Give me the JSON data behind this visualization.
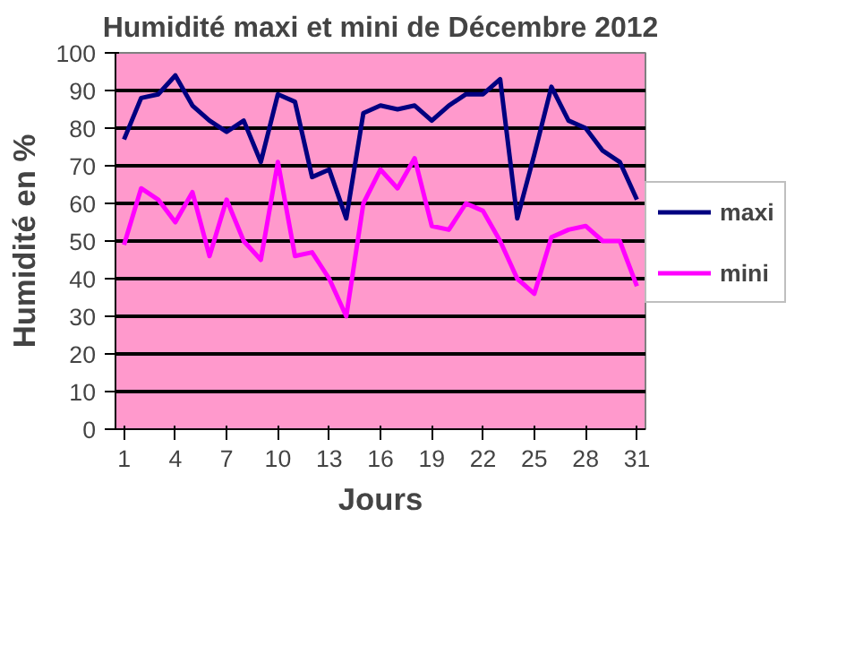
{
  "chart_data": {
    "type": "line",
    "title": "Humidité maxi et mini de Décembre 2012",
    "xlabel": "Jours",
    "ylabel": "Humidité en %",
    "x": [
      1,
      2,
      3,
      4,
      5,
      6,
      7,
      8,
      9,
      10,
      11,
      12,
      13,
      14,
      15,
      16,
      17,
      18,
      19,
      20,
      21,
      22,
      23,
      24,
      25,
      26,
      27,
      28,
      29,
      30,
      31
    ],
    "xlim": [
      0.5,
      31.5
    ],
    "xticks": [
      1,
      4,
      7,
      10,
      13,
      16,
      19,
      22,
      25,
      28,
      31
    ],
    "ylim": [
      0,
      100
    ],
    "yticks": [
      0,
      10,
      20,
      30,
      40,
      50,
      60,
      70,
      80,
      90,
      100
    ],
    "grid": "y",
    "legend": "right",
    "marker": "none",
    "line_style": "solid",
    "series": [
      {
        "name": "maxi",
        "color": "#000080",
        "values": [
          77,
          88,
          89,
          94,
          86,
          82,
          79,
          82,
          71,
          89,
          87,
          67,
          69,
          56,
          84,
          86,
          85,
          86,
          82,
          86,
          89,
          89,
          93,
          56,
          73,
          91,
          82,
          80,
          74,
          71,
          61
        ]
      },
      {
        "name": "mini",
        "color": "#ff00ff",
        "values": [
          49,
          64,
          61,
          55,
          63,
          46,
          61,
          50,
          45,
          71,
          46,
          47,
          40,
          30,
          60,
          69,
          64,
          72,
          54,
          53,
          60,
          58,
          50,
          40,
          36,
          51,
          53,
          54,
          50,
          50,
          38
        ]
      }
    ]
  }
}
